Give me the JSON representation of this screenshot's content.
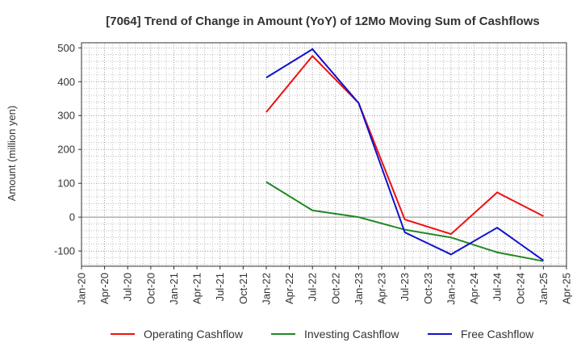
{
  "chart_data": {
    "type": "line",
    "title": "[7064]  Trend of Change in Amount (YoY) of 12Mo Moving Sum of Cashflows",
    "xlabel": "",
    "ylabel": "Amount (million yen)",
    "x_ticks": [
      "Jan-20",
      "Apr-20",
      "Jul-20",
      "Oct-20",
      "Jan-21",
      "Apr-21",
      "Jul-21",
      "Oct-21",
      "Jan-22",
      "Apr-22",
      "Jul-22",
      "Oct-22",
      "Jan-23",
      "Apr-23",
      "Jul-23",
      "Oct-23",
      "Jan-24",
      "Apr-24",
      "Jul-24",
      "Oct-24",
      "Jan-25",
      "Apr-25"
    ],
    "y_ticks": [
      500,
      400,
      300,
      200,
      100,
      0,
      -100
    ],
    "ylim": [
      -145,
      515
    ],
    "legend_position": "bottom",
    "grid": true,
    "series": [
      {
        "name": "Operating Cashflow",
        "color": "#ee1111",
        "x": [
          "Jan-22",
          "Jul-22",
          "Jan-23",
          "Jul-23",
          "Jan-24",
          "Jul-24",
          "Jan-25"
        ],
        "values": [
          310,
          476,
          337,
          -7,
          -50,
          73,
          3
        ]
      },
      {
        "name": "Investing Cashflow",
        "color": "#228822",
        "x": [
          "Jan-22",
          "Jul-22",
          "Jan-23",
          "Jul-23",
          "Jan-24",
          "Jul-24",
          "Jan-25"
        ],
        "values": [
          104,
          20,
          0,
          -37,
          -60,
          -104,
          -130
        ]
      },
      {
        "name": "Free Cashflow",
        "color": "#1111cc",
        "x": [
          "Jan-22",
          "Jul-22",
          "Jan-23",
          "Jul-23",
          "Jan-24",
          "Jul-24",
          "Jan-25"
        ],
        "values": [
          412,
          496,
          337,
          -45,
          -110,
          -31,
          -128
        ]
      }
    ]
  }
}
